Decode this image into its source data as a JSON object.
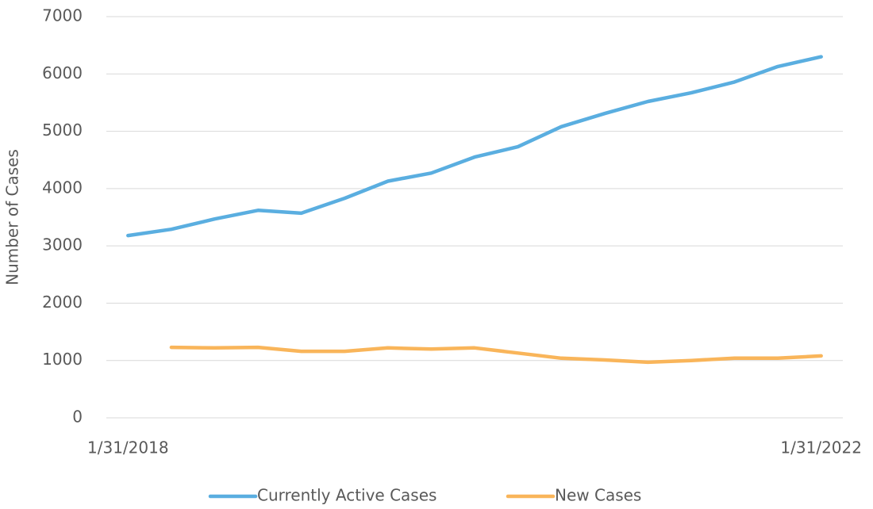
{
  "chart_data": {
    "type": "line",
    "y_label": "Number of Cases",
    "categories": [
      "1/31/2018",
      null,
      null,
      null,
      null,
      null,
      null,
      null,
      null,
      null,
      null,
      null,
      null,
      null,
      null,
      null,
      "1/31/2022"
    ],
    "series": [
      {
        "name": "Currently Active Cases",
        "color": "#5aaee0",
        "values": [
          3180,
          3290,
          3470,
          3620,
          3570,
          3830,
          4130,
          4270,
          4550,
          4730,
          5080,
          5310,
          5520,
          5670,
          5860,
          6130,
          6300
        ]
      },
      {
        "name": "New Cases",
        "color": "#f9b55a",
        "values": [
          null,
          1230,
          1220,
          1230,
          1160,
          1160,
          1220,
          1200,
          1220,
          1130,
          1040,
          1010,
          970,
          1000,
          1040,
          1040,
          1080
        ]
      }
    ],
    "ylim": [
      0,
      7000
    ],
    "yticks": [
      0,
      1000,
      2000,
      3000,
      4000,
      5000,
      6000,
      7000
    ],
    "grid": true,
    "legend": "bottom"
  }
}
